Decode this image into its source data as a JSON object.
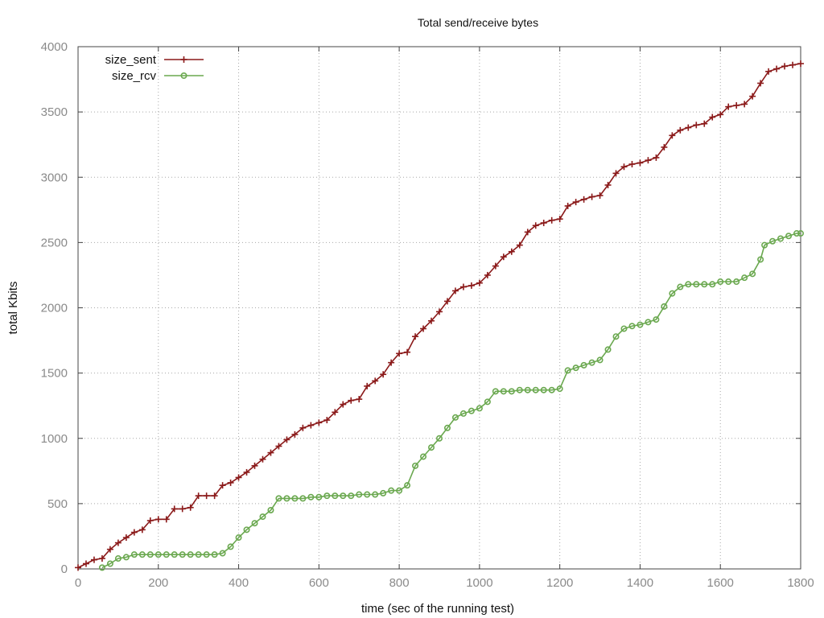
{
  "chart_data": {
    "type": "line",
    "title": "Total send/receive bytes",
    "xlabel": "time (sec of the running test)",
    "ylabel": "total Kbits",
    "xlim": [
      0,
      1800
    ],
    "ylim": [
      0,
      4000
    ],
    "xticks": [
      0,
      200,
      400,
      600,
      800,
      1000,
      1200,
      1400,
      1600,
      1800
    ],
    "yticks": [
      0,
      500,
      1000,
      1500,
      2000,
      2500,
      3000,
      3500,
      4000
    ],
    "grid": true,
    "legend_position": "top-left",
    "series": [
      {
        "name": "size_sent",
        "color": "#8b1a1a",
        "marker": "plus",
        "points": [
          [
            0,
            10
          ],
          [
            20,
            40
          ],
          [
            40,
            70
          ],
          [
            60,
            80
          ],
          [
            80,
            150
          ],
          [
            100,
            200
          ],
          [
            120,
            240
          ],
          [
            140,
            280
          ],
          [
            160,
            300
          ],
          [
            180,
            370
          ],
          [
            200,
            380
          ],
          [
            220,
            380
          ],
          [
            240,
            460
          ],
          [
            260,
            460
          ],
          [
            280,
            470
          ],
          [
            300,
            560
          ],
          [
            320,
            560
          ],
          [
            340,
            560
          ],
          [
            360,
            640
          ],
          [
            380,
            660
          ],
          [
            400,
            700
          ],
          [
            420,
            740
          ],
          [
            440,
            790
          ],
          [
            460,
            840
          ],
          [
            480,
            890
          ],
          [
            500,
            940
          ],
          [
            520,
            990
          ],
          [
            540,
            1030
          ],
          [
            560,
            1080
          ],
          [
            580,
            1100
          ],
          [
            600,
            1120
          ],
          [
            620,
            1140
          ],
          [
            640,
            1200
          ],
          [
            660,
            1260
          ],
          [
            680,
            1290
          ],
          [
            700,
            1300
          ],
          [
            720,
            1400
          ],
          [
            740,
            1440
          ],
          [
            760,
            1490
          ],
          [
            780,
            1580
          ],
          [
            800,
            1650
          ],
          [
            820,
            1660
          ],
          [
            840,
            1780
          ],
          [
            860,
            1840
          ],
          [
            880,
            1900
          ],
          [
            900,
            1970
          ],
          [
            920,
            2050
          ],
          [
            940,
            2130
          ],
          [
            960,
            2160
          ],
          [
            980,
            2170
          ],
          [
            1000,
            2190
          ],
          [
            1020,
            2250
          ],
          [
            1040,
            2320
          ],
          [
            1060,
            2390
          ],
          [
            1080,
            2430
          ],
          [
            1100,
            2480
          ],
          [
            1120,
            2580
          ],
          [
            1140,
            2630
          ],
          [
            1160,
            2650
          ],
          [
            1180,
            2670
          ],
          [
            1200,
            2680
          ],
          [
            1220,
            2780
          ],
          [
            1240,
            2810
          ],
          [
            1260,
            2830
          ],
          [
            1280,
            2850
          ],
          [
            1300,
            2860
          ],
          [
            1320,
            2940
          ],
          [
            1340,
            3030
          ],
          [
            1360,
            3080
          ],
          [
            1380,
            3100
          ],
          [
            1400,
            3110
          ],
          [
            1420,
            3130
          ],
          [
            1440,
            3150
          ],
          [
            1460,
            3230
          ],
          [
            1480,
            3320
          ],
          [
            1500,
            3360
          ],
          [
            1520,
            3380
          ],
          [
            1540,
            3400
          ],
          [
            1560,
            3410
          ],
          [
            1580,
            3460
          ],
          [
            1600,
            3480
          ],
          [
            1620,
            3540
          ],
          [
            1640,
            3550
          ],
          [
            1660,
            3560
          ],
          [
            1680,
            3620
          ],
          [
            1700,
            3720
          ],
          [
            1720,
            3810
          ],
          [
            1740,
            3830
          ],
          [
            1760,
            3850
          ],
          [
            1780,
            3860
          ],
          [
            1800,
            3870
          ]
        ]
      },
      {
        "name": "size_rcv",
        "color": "#6aa84f",
        "marker": "circle",
        "points": [
          [
            60,
            10
          ],
          [
            80,
            40
          ],
          [
            100,
            80
          ],
          [
            120,
            90
          ],
          [
            140,
            110
          ],
          [
            160,
            110
          ],
          [
            180,
            110
          ],
          [
            200,
            110
          ],
          [
            220,
            110
          ],
          [
            240,
            110
          ],
          [
            260,
            110
          ],
          [
            280,
            110
          ],
          [
            300,
            110
          ],
          [
            320,
            110
          ],
          [
            340,
            110
          ],
          [
            360,
            120
          ],
          [
            380,
            170
          ],
          [
            400,
            240
          ],
          [
            420,
            300
          ],
          [
            440,
            350
          ],
          [
            460,
            400
          ],
          [
            480,
            450
          ],
          [
            500,
            540
          ],
          [
            520,
            540
          ],
          [
            540,
            540
          ],
          [
            560,
            540
          ],
          [
            580,
            550
          ],
          [
            600,
            550
          ],
          [
            620,
            560
          ],
          [
            640,
            560
          ],
          [
            660,
            560
          ],
          [
            680,
            560
          ],
          [
            700,
            570
          ],
          [
            720,
            570
          ],
          [
            740,
            570
          ],
          [
            760,
            580
          ],
          [
            780,
            600
          ],
          [
            800,
            600
          ],
          [
            820,
            640
          ],
          [
            840,
            790
          ],
          [
            860,
            860
          ],
          [
            880,
            930
          ],
          [
            900,
            1000
          ],
          [
            920,
            1080
          ],
          [
            940,
            1160
          ],
          [
            960,
            1190
          ],
          [
            980,
            1210
          ],
          [
            1000,
            1230
          ],
          [
            1020,
            1280
          ],
          [
            1040,
            1360
          ],
          [
            1060,
            1360
          ],
          [
            1080,
            1360
          ],
          [
            1100,
            1370
          ],
          [
            1120,
            1370
          ],
          [
            1140,
            1370
          ],
          [
            1160,
            1370
          ],
          [
            1180,
            1370
          ],
          [
            1200,
            1380
          ],
          [
            1220,
            1520
          ],
          [
            1240,
            1540
          ],
          [
            1260,
            1560
          ],
          [
            1280,
            1580
          ],
          [
            1300,
            1600
          ],
          [
            1320,
            1680
          ],
          [
            1340,
            1780
          ],
          [
            1360,
            1840
          ],
          [
            1380,
            1860
          ],
          [
            1400,
            1870
          ],
          [
            1420,
            1890
          ],
          [
            1440,
            1910
          ],
          [
            1460,
            2010
          ],
          [
            1480,
            2110
          ],
          [
            1500,
            2160
          ],
          [
            1520,
            2180
          ],
          [
            1540,
            2180
          ],
          [
            1560,
            2180
          ],
          [
            1580,
            2180
          ],
          [
            1600,
            2200
          ],
          [
            1620,
            2200
          ],
          [
            1640,
            2200
          ],
          [
            1660,
            2230
          ],
          [
            1680,
            2260
          ],
          [
            1700,
            2370
          ],
          [
            1710,
            2480
          ],
          [
            1730,
            2510
          ],
          [
            1750,
            2530
          ],
          [
            1770,
            2550
          ],
          [
            1790,
            2570
          ],
          [
            1800,
            2570
          ]
        ]
      }
    ]
  }
}
